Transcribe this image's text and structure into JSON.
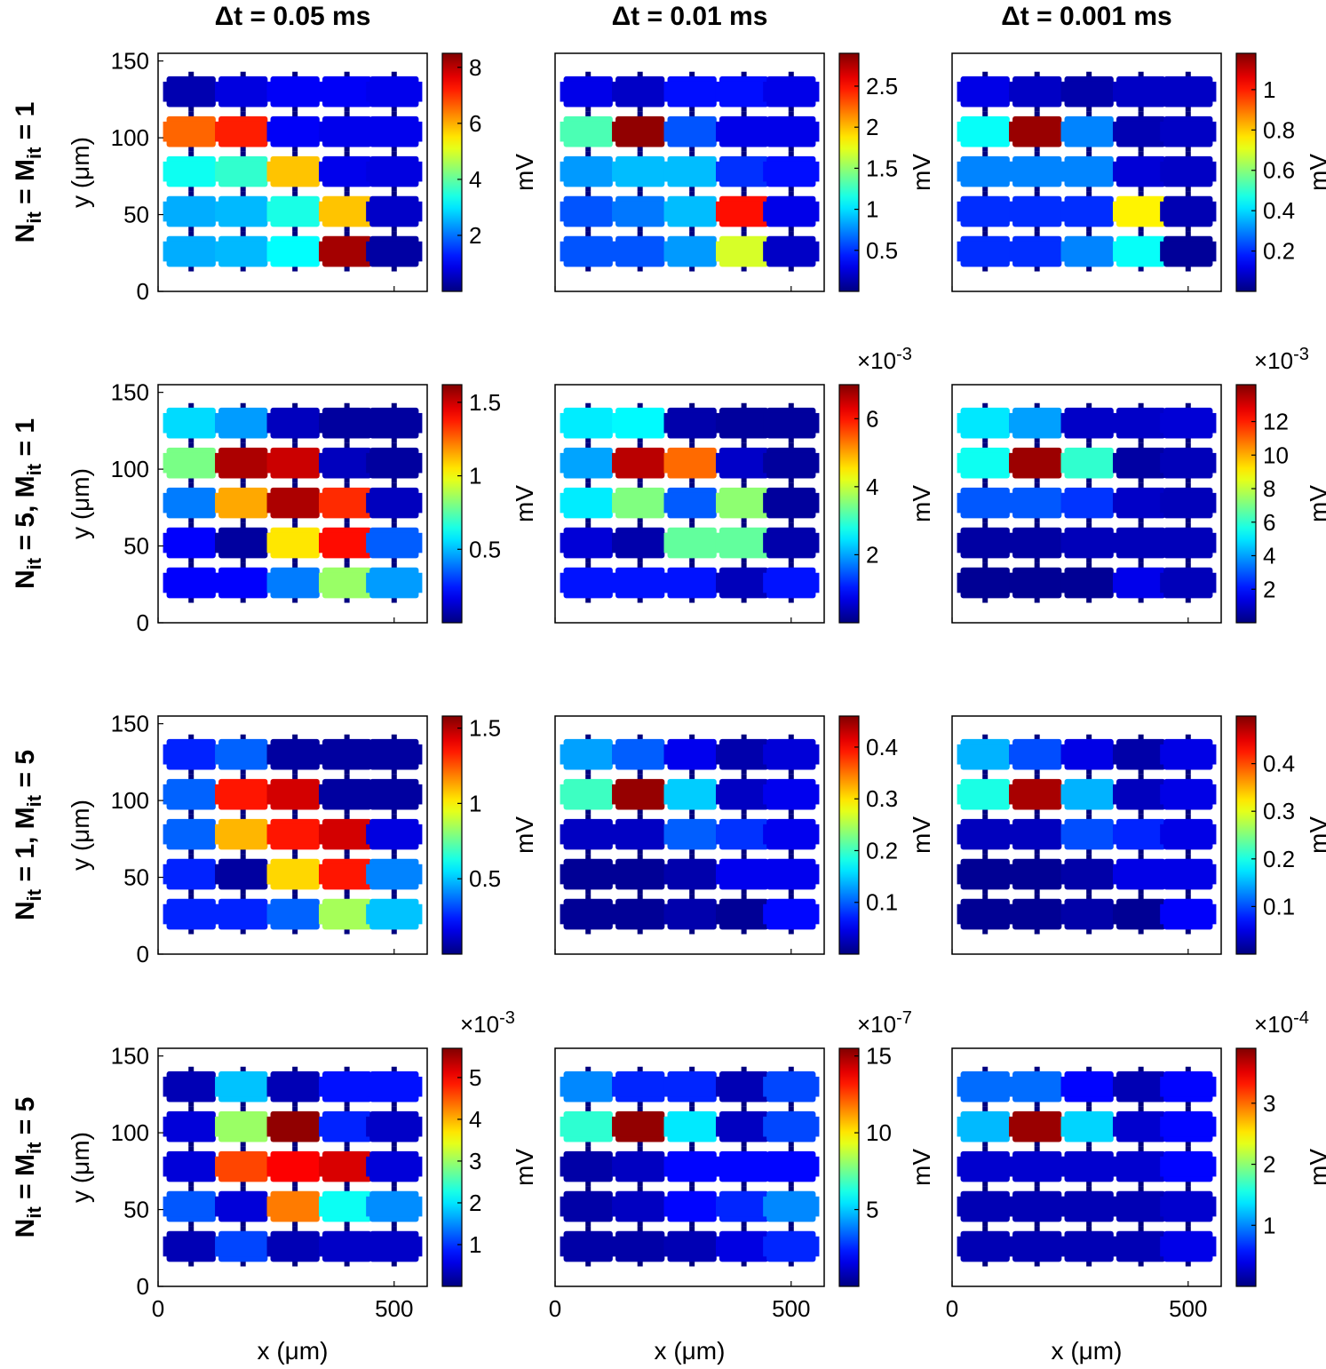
{
  "chart_data": {
    "type": "heatmap",
    "description_units": "mV",
    "column_titles": [
      "Δt = 0.05 ms",
      "Δt = 0.01 ms",
      "Δt = 0.001 ms"
    ],
    "row_labels": [
      {
        "prefix": "N",
        "sub1": "it",
        "mid": " = M",
        "sub2": "it",
        "suffix": " = 1"
      },
      {
        "prefix": "N",
        "sub1": "it",
        "mid": " = 5, M",
        "sub2": "it",
        "suffix": " = 1"
      },
      {
        "prefix": "N",
        "sub1": "it",
        "mid": " = 1, M",
        "sub2": "it",
        "suffix": " = 5"
      },
      {
        "prefix": "N",
        "sub1": "it",
        "mid": " = M",
        "sub2": "it",
        "suffix": " = 5"
      }
    ],
    "xlabel": "x (μm)",
    "ylabel": "y (μm)",
    "colorbar_label": "mV",
    "xlim": [
      0,
      570
    ],
    "ylim": [
      0,
      155
    ],
    "xticks": [
      0,
      500
    ],
    "yticks": [
      0,
      50,
      100,
      150
    ],
    "cell_x_centers": [
      70,
      180,
      290,
      400,
      500
    ],
    "cell_y_centers": [
      130,
      104,
      78,
      52,
      26
    ],
    "colormap": "jet",
    "panels": [
      [
        {
          "cmax": 8.5,
          "ticks": [
            2,
            4,
            6,
            8
          ],
          "exponent": "",
          "values": [
            [
              0.4,
              0.8,
              1.0,
              1.0,
              0.9
            ],
            [
              6.6,
              7.2,
              1.0,
              0.9,
              0.9
            ],
            [
              3.3,
              3.6,
              5.8,
              0.9,
              0.8
            ],
            [
              2.5,
              2.6,
              3.4,
              5.8,
              0.6
            ],
            [
              2.5,
              2.6,
              3.2,
              8.2,
              0.3
            ]
          ]
        },
        {
          "cmax": 2.9,
          "ticks": [
            0.5,
            1,
            1.5,
            2,
            2.5
          ],
          "exponent": "",
          "values": [
            [
              0.3,
              0.2,
              0.4,
              0.4,
              0.3
            ],
            [
              1.3,
              2.85,
              0.6,
              0.3,
              0.3
            ],
            [
              0.8,
              0.9,
              0.9,
              0.5,
              0.4
            ],
            [
              0.6,
              0.7,
              0.9,
              2.5,
              0.3
            ],
            [
              0.6,
              0.6,
              0.8,
              1.7,
              0.2
            ]
          ]
        },
        {
          "cmax": 1.18,
          "ticks": [
            0.2,
            0.4,
            0.6,
            0.8,
            1
          ],
          "exponent": "",
          "values": [
            [
              0.12,
              0.08,
              0.05,
              0.08,
              0.08
            ],
            [
              0.45,
              1.15,
              0.3,
              0.06,
              0.08
            ],
            [
              0.3,
              0.3,
              0.3,
              0.1,
              0.08
            ],
            [
              0.2,
              0.2,
              0.2,
              0.75,
              0.06
            ],
            [
              0.2,
              0.2,
              0.3,
              0.45,
              0.03
            ]
          ]
        }
      ],
      [
        {
          "cmax": 1.62,
          "ticks": [
            0.5,
            1,
            1.5
          ],
          "exponent": "",
          "values": [
            [
              0.55,
              0.45,
              0.1,
              0.05,
              0.05
            ],
            [
              0.8,
              1.55,
              1.5,
              0.1,
              0.05
            ],
            [
              0.4,
              1.15,
              1.55,
              1.35,
              0.1
            ],
            [
              0.2,
              0.05,
              1.05,
              1.4,
              0.35
            ],
            [
              0.2,
              0.2,
              0.4,
              0.85,
              0.45
            ]
          ]
        },
        {
          "cmax": 7.0,
          "ticks": [
            2,
            4,
            6
          ],
          "exponent": "-3",
          "values": [
            [
              2.5,
              2.6,
              0.3,
              0.2,
              0.2
            ],
            [
              2.0,
              6.6,
              5.4,
              0.5,
              0.2
            ],
            [
              2.5,
              3.5,
              1.5,
              3.6,
              0.2
            ],
            [
              0.6,
              0.3,
              3.3,
              3.3,
              0.3
            ],
            [
              1.0,
              1.0,
              1.0,
              0.4,
              1.0
            ]
          ]
        },
        {
          "cmax": 14.2,
          "ticks": [
            2,
            4,
            6,
            8,
            10,
            12
          ],
          "exponent": "-3",
          "values": [
            [
              5.0,
              4.0,
              1.0,
              1.0,
              1.2
            ],
            [
              5.5,
              13.8,
              6.0,
              0.5,
              0.8
            ],
            [
              3.0,
              3.0,
              2.5,
              1.0,
              0.8
            ],
            [
              0.5,
              0.5,
              0.8,
              0.8,
              0.8
            ],
            [
              0.3,
              0.3,
              0.3,
              1.5,
              0.8
            ]
          ]
        }
      ],
      [
        {
          "cmax": 1.58,
          "ticks": [
            0.5,
            1,
            1.5
          ],
          "exponent": "",
          "values": [
            [
              0.25,
              0.35,
              0.05,
              0.05,
              0.05
            ],
            [
              0.35,
              1.35,
              1.45,
              0.05,
              0.05
            ],
            [
              0.35,
              1.1,
              1.35,
              1.45,
              0.15
            ],
            [
              0.25,
              0.05,
              1.05,
              1.35,
              0.4
            ],
            [
              0.25,
              0.25,
              0.35,
              0.85,
              0.5
            ]
          ]
        },
        {
          "cmax": 0.46,
          "ticks": [
            0.1,
            0.2,
            0.3,
            0.4
          ],
          "exponent": "",
          "values": [
            [
              0.13,
              0.1,
              0.05,
              0.02,
              0.04
            ],
            [
              0.2,
              0.45,
              0.15,
              0.03,
              0.05
            ],
            [
              0.03,
              0.03,
              0.1,
              0.08,
              0.05
            ],
            [
              0.01,
              0.01,
              0.02,
              0.05,
              0.05
            ],
            [
              0.01,
              0.01,
              0.02,
              0.01,
              0.06
            ]
          ]
        },
        {
          "cmax": 0.5,
          "ticks": [
            0.1,
            0.2,
            0.3,
            0.4
          ],
          "exponent": "",
          "values": [
            [
              0.15,
              0.1,
              0.05,
              0.02,
              0.05
            ],
            [
              0.2,
              0.48,
              0.15,
              0.03,
              0.05
            ],
            [
              0.03,
              0.03,
              0.1,
              0.08,
              0.05
            ],
            [
              0.01,
              0.01,
              0.02,
              0.05,
              0.05
            ],
            [
              0.01,
              0.01,
              0.02,
              0.01,
              0.06
            ]
          ]
        }
      ],
      [
        {
          "cmax": 5.7,
          "ticks": [
            1,
            2,
            3,
            4,
            5
          ],
          "exponent": "-3",
          "values": [
            [
              0.3,
              1.8,
              0.3,
              0.8,
              0.8
            ],
            [
              0.5,
              3.0,
              5.6,
              0.9,
              0.4
            ],
            [
              0.5,
              4.6,
              5.0,
              5.2,
              0.5
            ],
            [
              1.2,
              0.5,
              4.3,
              2.2,
              1.5
            ],
            [
              0.3,
              1.1,
              0.3,
              0.4,
              0.4
            ]
          ]
        },
        {
          "cmax": 15.5,
          "ticks": [
            5,
            10,
            15
          ],
          "exponent": "-7",
          "values": [
            [
              4.0,
              2.5,
              2.5,
              0.8,
              3.0
            ],
            [
              6.5,
              15.2,
              5.5,
              1.0,
              3.0
            ],
            [
              0.6,
              1.0,
              2.0,
              2.0,
              2.0
            ],
            [
              0.6,
              1.0,
              2.0,
              2.5,
              4.0
            ],
            [
              0.6,
              0.6,
              0.8,
              1.5,
              2.5
            ]
          ]
        },
        {
          "cmax": 3.9,
          "ticks": [
            1,
            2,
            3
          ],
          "exponent": "-4",
          "values": [
            [
              0.9,
              0.9,
              0.5,
              0.2,
              0.5
            ],
            [
              1.2,
              3.8,
              1.3,
              0.3,
              0.5
            ],
            [
              0.3,
              0.3,
              0.3,
              0.3,
              0.5
            ],
            [
              0.2,
              0.2,
              0.2,
              0.2,
              0.3
            ],
            [
              0.2,
              0.2,
              0.2,
              0.2,
              0.4
            ]
          ]
        }
      ]
    ]
  }
}
